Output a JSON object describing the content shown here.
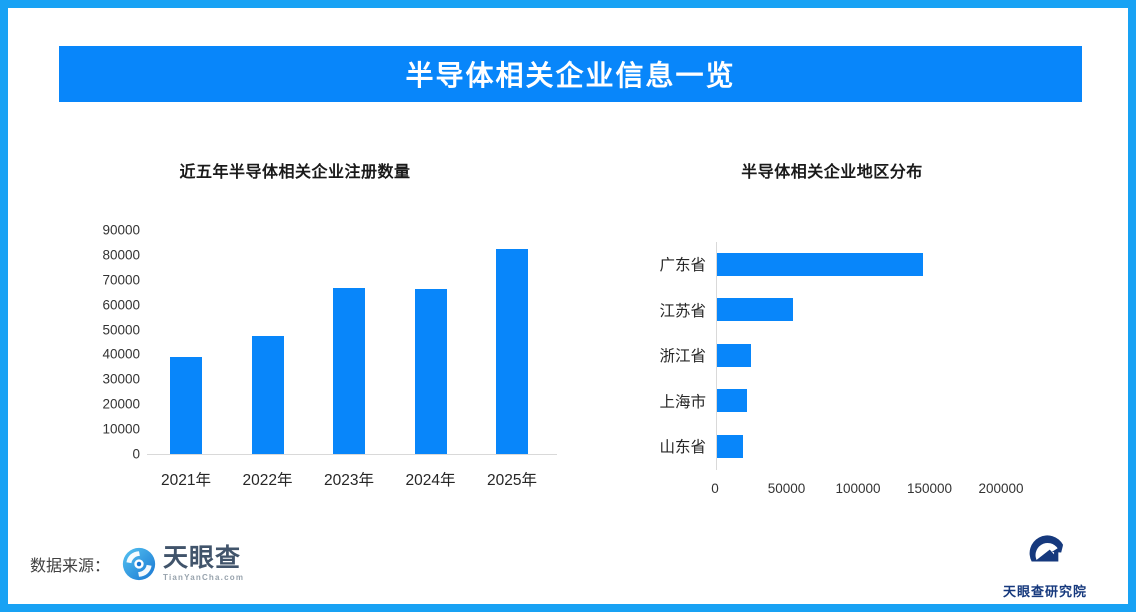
{
  "header": {
    "title": "半导体相关企业信息一览"
  },
  "colors": {
    "accent": "#0886fa",
    "frame": "#18a2f4",
    "axis_line": "#d9d9d9",
    "title_text": "#1a1a1a",
    "tick_text": "#333333"
  },
  "chart_data": [
    {
      "type": "bar",
      "orientation": "vertical",
      "title": "近五年半导体相关企业注册数量",
      "categories": [
        "2021年",
        "2022年",
        "2023年",
        "2024年",
        "2025年"
      ],
      "values": [
        39000,
        47300,
        66700,
        66300,
        82200
      ],
      "ylim": [
        0,
        90000
      ],
      "yticks": [
        0,
        10000,
        20000,
        30000,
        40000,
        50000,
        60000,
        70000,
        80000,
        90000
      ],
      "grid": false,
      "bar_color": "#0886fa"
    },
    {
      "type": "bar",
      "orientation": "horizontal",
      "title": "半导体相关企业地区分布",
      "categories": [
        "广东省",
        "江苏省",
        "浙江省",
        "上海市",
        "山东省"
      ],
      "values": [
        144000,
        53000,
        24000,
        21000,
        18500
      ],
      "xlim": [
        0,
        240000
      ],
      "xticks": [
        0,
        50000,
        100000,
        150000,
        200000
      ],
      "grid": false,
      "bar_color": "#0886fa"
    }
  ],
  "footer": {
    "source_label": "数据来源：",
    "tianyancha": {
      "name": "天眼查",
      "domain": "TianYanCha.com"
    },
    "research_institute": {
      "name": "天眼查研究院"
    }
  }
}
